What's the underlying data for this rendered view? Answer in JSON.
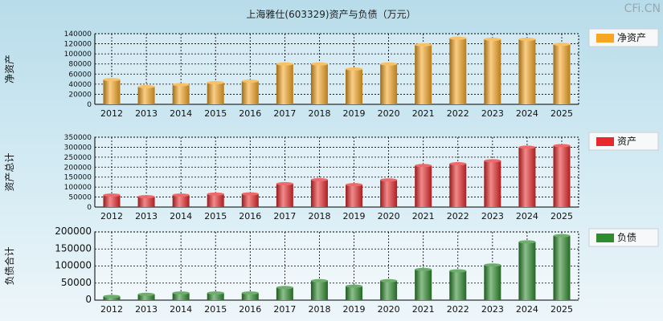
{
  "page": {
    "title": "上海雅仕(603329)资产与负债（万元）",
    "watermark": "CFi.CN"
  },
  "chart_data": [
    {
      "type": "bar",
      "title": "",
      "ylabel": "净资产",
      "categories": [
        "2012",
        "2013",
        "2014",
        "2015",
        "2016",
        "2017",
        "2018",
        "2019",
        "2020",
        "2021",
        "2022",
        "2023",
        "2024",
        "2025"
      ],
      "series": [
        {
          "name": "净资产",
          "color": "#f5a623",
          "values": [
            49000,
            35000,
            39000,
            43000,
            46000,
            80000,
            80000,
            70000,
            80000,
            118000,
            131000,
            129000,
            129000,
            119000
          ]
        }
      ],
      "ylim": [
        0,
        140000
      ],
      "yticks": [
        "0",
        "20000",
        "40000",
        "60000",
        "80000",
        "100000",
        "120000",
        "140000"
      ],
      "grid": true,
      "legend": "right"
    },
    {
      "type": "bar",
      "title": "",
      "ylabel": "资产总计",
      "categories": [
        "2012",
        "2013",
        "2014",
        "2015",
        "2016",
        "2017",
        "2018",
        "2019",
        "2020",
        "2021",
        "2022",
        "2023",
        "2024",
        "2025"
      ],
      "series": [
        {
          "name": "资产",
          "color": "#e8282a",
          "values": [
            60000,
            52000,
            60000,
            65000,
            66000,
            117000,
            137000,
            112000,
            136000,
            208000,
            217000,
            232000,
            300000,
            308000
          ]
        }
      ],
      "ylim": [
        0,
        350000
      ],
      "yticks": [
        "0",
        "50000",
        "100000",
        "150000",
        "200000",
        "250000",
        "300000",
        "350000"
      ],
      "grid": true,
      "legend": "right"
    },
    {
      "type": "bar",
      "title": "",
      "ylabel": "负债合计",
      "categories": [
        "2012",
        "2013",
        "2014",
        "2015",
        "2016",
        "2017",
        "2018",
        "2019",
        "2020",
        "2021",
        "2022",
        "2023",
        "2024",
        "2025"
      ],
      "series": [
        {
          "name": "负债",
          "color": "#2e8b2e",
          "values": [
            11000,
            17000,
            21000,
            21000,
            21000,
            37000,
            57000,
            41000,
            57000,
            90000,
            86000,
            103000,
            171000,
            189000
          ]
        }
      ],
      "ylim": [
        0,
        200000
      ],
      "yticks": [
        "0",
        "50000",
        "100000",
        "150000",
        "200000"
      ],
      "grid": true,
      "legend": "right"
    }
  ]
}
